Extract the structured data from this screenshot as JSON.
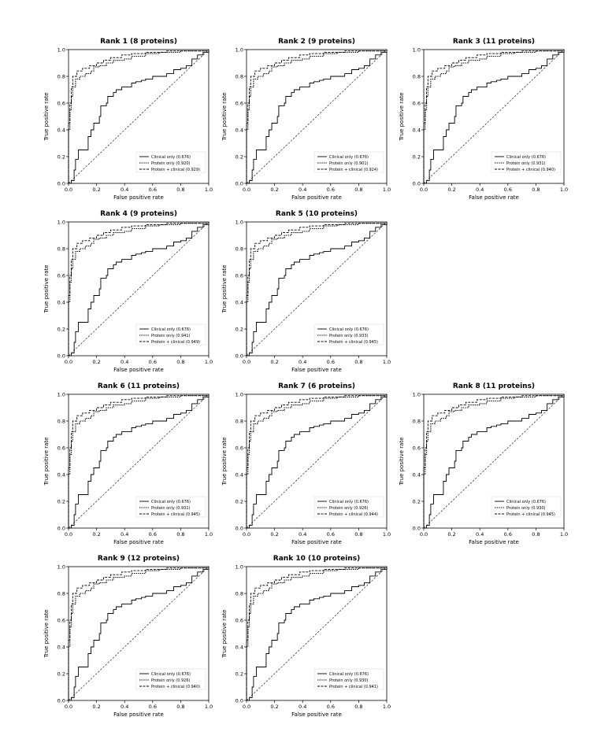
{
  "chart_data": [
    {
      "type": "line",
      "title": "Rank 1 (8 proteins)",
      "xlabel": "False positive rate",
      "ylabel": "True positive rate",
      "xlim": [
        0,
        1
      ],
      "ylim": [
        0,
        1
      ],
      "xticks": [
        "0.0",
        "0.2",
        "0.4",
        "0.6",
        "0.8",
        "1.0"
      ],
      "yticks": [
        "0.0",
        "0.2",
        "0.4",
        "0.6",
        "0.8",
        "1.0"
      ],
      "legend_position": "lower-right",
      "series": [
        {
          "name": "Clinical only (0.676)",
          "style": "solid"
        },
        {
          "name": "Protein only (0.920)",
          "style": "dotted"
        },
        {
          "name": "Protein + clinical (0.929)",
          "style": "dashed"
        }
      ]
    },
    {
      "type": "line",
      "title": "Rank 2 (9 proteins)",
      "xlabel": "False positive rate",
      "ylabel": "True positive rate",
      "xlim": [
        0,
        1
      ],
      "ylim": [
        0,
        1
      ],
      "xticks": [
        "0.0",
        "0.2",
        "0.4",
        "0.6",
        "0.8",
        "1.0"
      ],
      "yticks": [
        "0.0",
        "0.2",
        "0.4",
        "0.6",
        "0.8",
        "1.0"
      ],
      "legend_position": "lower-right",
      "series": [
        {
          "name": "Clinical only (0.676)",
          "style": "solid"
        },
        {
          "name": "Protein only (0.901)",
          "style": "dotted"
        },
        {
          "name": "Protein + clinical (0.924)",
          "style": "dashed"
        }
      ]
    },
    {
      "type": "line",
      "title": "Rank 3 (11 proteins)",
      "xlabel": "False positive rate",
      "ylabel": "True positive rate",
      "xlim": [
        0,
        1
      ],
      "ylim": [
        0,
        1
      ],
      "xticks": [
        "0.0",
        "0.2",
        "0.4",
        "0.6",
        "0.8",
        "1.0"
      ],
      "yticks": [
        "0.0",
        "0.2",
        "0.4",
        "0.6",
        "0.8",
        "1.0"
      ],
      "legend_position": "lower-right",
      "series": [
        {
          "name": "Clinical only (0.676)",
          "style": "solid"
        },
        {
          "name": "Protein only (0.931)",
          "style": "dotted"
        },
        {
          "name": "Protein + clinical (0.940)",
          "style": "dashed"
        }
      ]
    },
    {
      "type": "line",
      "title": "Rank 4 (9 proteins)",
      "xlabel": "False positive rate",
      "ylabel": "True positive rate",
      "xlim": [
        0,
        1
      ],
      "ylim": [
        0,
        1
      ],
      "xticks": [
        "0.0",
        "0.2",
        "0.4",
        "0.6",
        "0.8",
        "1.0"
      ],
      "yticks": [
        "0.0",
        "0.2",
        "0.4",
        "0.6",
        "0.8",
        "1.0"
      ],
      "legend_position": "lower-right",
      "series": [
        {
          "name": "Clinical only (0.676)",
          "style": "solid"
        },
        {
          "name": "Protein only (0.941)",
          "style": "dotted"
        },
        {
          "name": "Protein + clinical (0.949)",
          "style": "dashed"
        }
      ]
    },
    {
      "type": "line",
      "title": "Rank 5 (10 proteins)",
      "xlabel": "False positive rate",
      "ylabel": "True positive rate",
      "xlim": [
        0,
        1
      ],
      "ylim": [
        0,
        1
      ],
      "xticks": [
        "0.0",
        "0.2",
        "0.4",
        "0.6",
        "0.8",
        "1.0"
      ],
      "yticks": [
        "0.0",
        "0.2",
        "0.4",
        "0.6",
        "0.8",
        "1.0"
      ],
      "legend_position": "lower-right",
      "series": [
        {
          "name": "Clinical only (0.676)",
          "style": "solid"
        },
        {
          "name": "Protein only (0.933)",
          "style": "dotted"
        },
        {
          "name": "Protein + clinical (0.945)",
          "style": "dashed"
        }
      ]
    },
    {
      "type": "line",
      "title": "Rank 6 (11 proteins)",
      "xlabel": "False positive rate",
      "ylabel": "True positive rate",
      "xlim": [
        0,
        1
      ],
      "ylim": [
        0,
        1
      ],
      "xticks": [
        "0.0",
        "0.2",
        "0.4",
        "0.6",
        "0.8",
        "1.0"
      ],
      "yticks": [
        "0.0",
        "0.2",
        "0.4",
        "0.6",
        "0.8",
        "1.0"
      ],
      "legend_position": "lower-right",
      "series": [
        {
          "name": "Clinical only (0.676)",
          "style": "solid"
        },
        {
          "name": "Protein only (0.931)",
          "style": "dotted"
        },
        {
          "name": "Protein + clinical (0.945)",
          "style": "dashed"
        }
      ]
    },
    {
      "type": "line",
      "title": "Rank 7 (6 proteins)",
      "xlabel": "False positive rate",
      "ylabel": "True positive rate",
      "xlim": [
        0,
        1
      ],
      "ylim": [
        0,
        1
      ],
      "xticks": [
        "0.0",
        "0.2",
        "0.4",
        "0.6",
        "0.8",
        "1.0"
      ],
      "yticks": [
        "0.0",
        "0.2",
        "0.4",
        "0.6",
        "0.8",
        "1.0"
      ],
      "legend_position": "lower-right",
      "series": [
        {
          "name": "Clinical only (0.676)",
          "style": "solid"
        },
        {
          "name": "Protein only (0.926)",
          "style": "dotted"
        },
        {
          "name": "Protein + clinical (0.944)",
          "style": "dashed"
        }
      ]
    },
    {
      "type": "line",
      "title": "Rank 8 (11 proteins)",
      "xlabel": "False positive rate",
      "ylabel": "True positive rate",
      "xlim": [
        0,
        1
      ],
      "ylim": [
        0,
        1
      ],
      "xticks": [
        "0.0",
        "0.2",
        "0.4",
        "0.6",
        "0.8",
        "1.0"
      ],
      "yticks": [
        "0.0",
        "0.2",
        "0.4",
        "0.6",
        "0.8",
        "1.0"
      ],
      "legend_position": "lower-right",
      "series": [
        {
          "name": "Clinical only (0.676)",
          "style": "solid"
        },
        {
          "name": "Protein only (0.930)",
          "style": "dotted"
        },
        {
          "name": "Protein + clinical (0.945)",
          "style": "dashed"
        }
      ]
    },
    {
      "type": "line",
      "title": "Rank 9 (12 proteins)",
      "xlabel": "False positive rate",
      "ylabel": "True positive rate",
      "xlim": [
        0,
        1
      ],
      "ylim": [
        0,
        1
      ],
      "xticks": [
        "0.0",
        "0.2",
        "0.4",
        "0.6",
        "0.8",
        "1.0"
      ],
      "yticks": [
        "0.0",
        "0.2",
        "0.4",
        "0.6",
        "0.8",
        "1.0"
      ],
      "legend_position": "lower-right",
      "series": [
        {
          "name": "Clinical only (0.676)",
          "style": "solid"
        },
        {
          "name": "Protein only (0.926)",
          "style": "dotted"
        },
        {
          "name": "Protein + clinical (0.940)",
          "style": "dashed"
        }
      ]
    },
    {
      "type": "line",
      "title": "Rank 10 (10 proteins)",
      "xlabel": "False positive rate",
      "ylabel": "True positive rate",
      "xlim": [
        0,
        1
      ],
      "ylim": [
        0,
        1
      ],
      "xticks": [
        "0.0",
        "0.2",
        "0.4",
        "0.6",
        "0.8",
        "1.0"
      ],
      "yticks": [
        "0.0",
        "0.2",
        "0.4",
        "0.6",
        "0.8",
        "1.0"
      ],
      "legend_position": "lower-right",
      "series": [
        {
          "name": "Clinical only (0.676)",
          "style": "solid"
        },
        {
          "name": "Protein only (0.930)",
          "style": "dotted"
        },
        {
          "name": "Protein + clinical (0.941)",
          "style": "dashed"
        }
      ]
    }
  ],
  "roc_curves": {
    "clinical": [
      [
        0,
        0
      ],
      [
        0.02,
        0.02
      ],
      [
        0.04,
        0.1
      ],
      [
        0.05,
        0.18
      ],
      [
        0.07,
        0.25
      ],
      [
        0.12,
        0.25
      ],
      [
        0.14,
        0.35
      ],
      [
        0.16,
        0.4
      ],
      [
        0.18,
        0.45
      ],
      [
        0.2,
        0.45
      ],
      [
        0.22,
        0.5
      ],
      [
        0.23,
        0.58
      ],
      [
        0.27,
        0.6
      ],
      [
        0.28,
        0.65
      ],
      [
        0.32,
        0.68
      ],
      [
        0.34,
        0.7
      ],
      [
        0.37,
        0.7
      ],
      [
        0.38,
        0.72
      ],
      [
        0.42,
        0.72
      ],
      [
        0.45,
        0.75
      ],
      [
        0.48,
        0.76
      ],
      [
        0.52,
        0.77
      ],
      [
        0.55,
        0.78
      ],
      [
        0.6,
        0.8
      ],
      [
        0.65,
        0.8
      ],
      [
        0.7,
        0.82
      ],
      [
        0.75,
        0.85
      ],
      [
        0.8,
        0.86
      ],
      [
        0.84,
        0.88
      ],
      [
        0.88,
        0.93
      ],
      [
        0.92,
        0.96
      ],
      [
        0.96,
        0.98
      ],
      [
        1,
        1
      ]
    ],
    "protein": [
      [
        0,
        0
      ],
      [
        0,
        0.4
      ],
      [
        0.01,
        0.55
      ],
      [
        0.02,
        0.65
      ],
      [
        0.03,
        0.72
      ],
      [
        0.05,
        0.78
      ],
      [
        0.08,
        0.8
      ],
      [
        0.12,
        0.82
      ],
      [
        0.16,
        0.84
      ],
      [
        0.18,
        0.87
      ],
      [
        0.22,
        0.88
      ],
      [
        0.27,
        0.9
      ],
      [
        0.32,
        0.92
      ],
      [
        0.4,
        0.93
      ],
      [
        0.45,
        0.95
      ],
      [
        0.55,
        0.97
      ],
      [
        0.65,
        0.98
      ],
      [
        0.8,
        0.99
      ],
      [
        1,
        1
      ]
    ],
    "combined": [
      [
        0,
        0
      ],
      [
        0,
        0.45
      ],
      [
        0.01,
        0.6
      ],
      [
        0.02,
        0.72
      ],
      [
        0.03,
        0.8
      ],
      [
        0.06,
        0.84
      ],
      [
        0.1,
        0.86
      ],
      [
        0.15,
        0.88
      ],
      [
        0.2,
        0.9
      ],
      [
        0.25,
        0.92
      ],
      [
        0.3,
        0.94
      ],
      [
        0.38,
        0.96
      ],
      [
        0.45,
        0.97
      ],
      [
        0.55,
        0.98
      ],
      [
        0.7,
        0.99
      ],
      [
        1,
        1
      ]
    ]
  }
}
